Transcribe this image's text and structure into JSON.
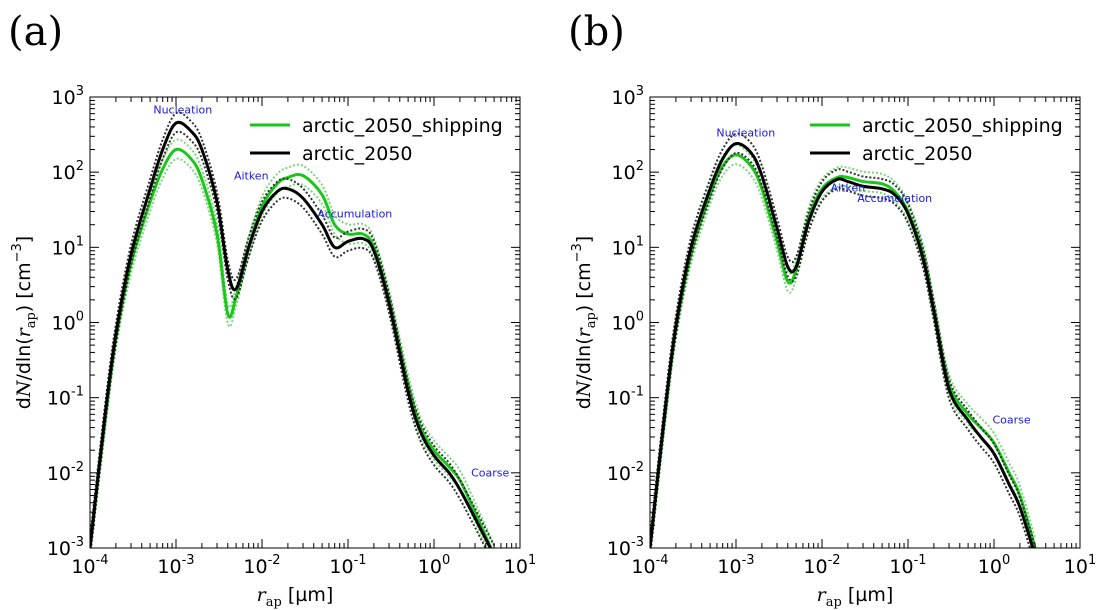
{
  "colors": {
    "shipping": "#1ac61a",
    "shipping_light": "#77d977",
    "base": "#000000",
    "base_dotted": "#333333",
    "mode_label": "#1a1adf"
  },
  "x_tick_labels": [
    {
      "base": "10",
      "exp": "-4"
    },
    {
      "base": "10",
      "exp": "-3"
    },
    {
      "base": "10",
      "exp": "-2"
    },
    {
      "base": "10",
      "exp": "-1"
    },
    {
      "base": "10",
      "exp": "0"
    },
    {
      "base": "10",
      "exp": "1"
    }
  ],
  "y_tick_labels": [
    {
      "base": "10",
      "exp": "-3"
    },
    {
      "base": "10",
      "exp": "-2"
    },
    {
      "base": "10",
      "exp": "-1"
    },
    {
      "base": "10",
      "exp": "0"
    },
    {
      "base": "10",
      "exp": "1"
    },
    {
      "base": "10",
      "exp": "2"
    },
    {
      "base": "10",
      "exp": "3"
    }
  ],
  "chart_data": [
    {
      "type": "line",
      "panel_label": "(a)",
      "xlabel": "r_ap [µm]",
      "ylabel": "dN/dln(r_ap) [cm^-3]",
      "xscale": "log",
      "yscale": "log",
      "xlim": [
        0.0001,
        10
      ],
      "ylim": [
        0.001,
        1000
      ],
      "grid": false,
      "legend_position": "top-right",
      "annotations": [
        {
          "text": "Nucleation",
          "x": 0.0012,
          "y": 600
        },
        {
          "text": "Aitken",
          "x": 0.0075,
          "y": 80
        },
        {
          "text": "Accumulation",
          "x": 0.12,
          "y": 25
        },
        {
          "text": "Coarse",
          "x": 4.5,
          "y": 0.009
        }
      ],
      "series": [
        {
          "name": "arctic_2050_shipping",
          "color_key": "shipping",
          "x": [
            0.0001,
            0.00015,
            0.0002,
            0.0003,
            0.0005,
            0.0007,
            0.001,
            0.0015,
            0.002,
            0.003,
            0.004,
            0.005,
            0.007,
            0.01,
            0.015,
            0.02,
            0.03,
            0.05,
            0.07,
            0.1,
            0.15,
            0.2,
            0.3,
            0.5,
            0.7,
            1,
            1.5,
            2,
            3,
            5
          ],
          "y": [
            0.001,
            0.05,
            0.6,
            6,
            40,
            110,
            200,
            150,
            80,
            15,
            1.3,
            2.2,
            10,
            35,
            70,
            85,
            90,
            50,
            20,
            15,
            15,
            10,
            2,
            0.15,
            0.04,
            0.02,
            0.012,
            0.008,
            0.003,
            0.0008
          ]
        },
        {
          "name": "arctic_2050",
          "color_key": "base",
          "x": [
            0.0001,
            0.00015,
            0.0002,
            0.0003,
            0.0005,
            0.0007,
            0.001,
            0.0015,
            0.002,
            0.003,
            0.004,
            0.005,
            0.007,
            0.01,
            0.015,
            0.02,
            0.03,
            0.05,
            0.07,
            0.1,
            0.15,
            0.2,
            0.3,
            0.5,
            0.7,
            1,
            1.5,
            2,
            3,
            5
          ],
          "y": [
            0.001,
            0.06,
            0.7,
            8,
            60,
            200,
            450,
            350,
            200,
            40,
            5,
            2.8,
            10,
            30,
            55,
            60,
            45,
            20,
            10,
            12,
            13,
            9,
            1.8,
            0.12,
            0.035,
            0.017,
            0.01,
            0.006,
            0.0025,
            0.0008
          ]
        }
      ]
    },
    {
      "type": "line",
      "panel_label": "(b)",
      "xlabel": "r_ap [µm]",
      "ylabel": "dN/dln(r_ap) [cm^-3]",
      "xscale": "log",
      "yscale": "log",
      "xlim": [
        0.0001,
        10
      ],
      "ylim": [
        0.001,
        1000
      ],
      "grid": false,
      "legend_position": "top-right",
      "annotations": [
        {
          "text": "Nucleation",
          "x": 0.0013,
          "y": 300
        },
        {
          "text": "Aitken",
          "x": 0.02,
          "y": 55
        },
        {
          "text": "Accumulation",
          "x": 0.07,
          "y": 40
        },
        {
          "text": "Coarse",
          "x": 1.6,
          "y": 0.045
        }
      ],
      "series": [
        {
          "name": "arctic_2050_shipping",
          "color_key": "shipping",
          "x": [
            0.0001,
            0.00015,
            0.0002,
            0.0003,
            0.0005,
            0.0007,
            0.001,
            0.0015,
            0.002,
            0.003,
            0.004,
            0.005,
            0.007,
            0.01,
            0.015,
            0.02,
            0.03,
            0.05,
            0.07,
            0.1,
            0.15,
            0.2,
            0.3,
            0.5,
            0.7,
            1,
            1.5,
            2,
            3
          ],
          "y": [
            0.001,
            0.06,
            0.8,
            8,
            50,
            120,
            170,
            120,
            60,
            12,
            3.5,
            5,
            25,
            60,
            85,
            85,
            75,
            70,
            55,
            30,
            8,
            1.5,
            0.15,
            0.06,
            0.04,
            0.025,
            0.01,
            0.005,
            0.001
          ]
        },
        {
          "name": "arctic_2050",
          "color_key": "base",
          "x": [
            0.0001,
            0.00015,
            0.0002,
            0.0003,
            0.0005,
            0.0007,
            0.001,
            0.0015,
            0.002,
            0.003,
            0.004,
            0.005,
            0.007,
            0.01,
            0.015,
            0.02,
            0.03,
            0.05,
            0.07,
            0.1,
            0.15,
            0.2,
            0.3,
            0.5,
            0.7,
            1,
            1.5,
            2,
            3
          ],
          "y": [
            0.001,
            0.07,
            0.9,
            10,
            60,
            150,
            240,
            180,
            90,
            18,
            5.5,
            5.5,
            22,
            55,
            80,
            75,
            65,
            60,
            50,
            28,
            7,
            1.4,
            0.13,
            0.05,
            0.03,
            0.018,
            0.007,
            0.0035,
            0.0008
          ]
        }
      ]
    }
  ]
}
